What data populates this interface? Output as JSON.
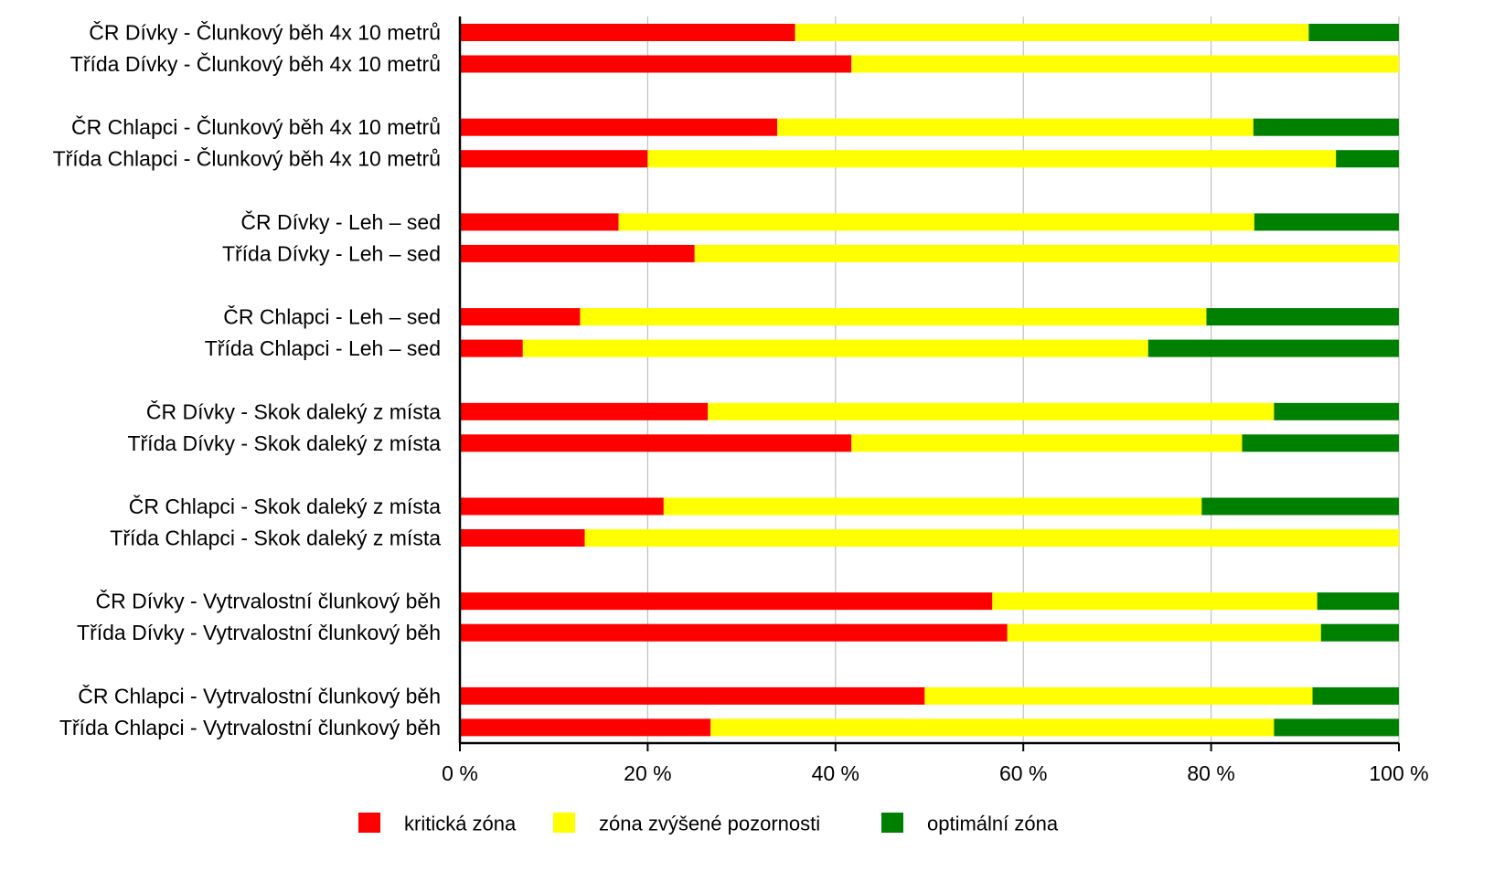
{
  "chart_data": {
    "type": "bar",
    "orientation": "horizontal",
    "stacked": "percent",
    "categories": [
      "ČR Dívky - Člunkový běh 4x 10 metrů",
      "Třída Dívky - Člunkový běh 4x 10 metrů",
      "ČR Chlapci - Člunkový běh 4x 10 metrů",
      "Třída Chlapci - Člunkový běh 4x 10 metrů",
      "ČR Dívky - Leh – sed",
      "Třída Dívky - Leh – sed",
      "ČR Chlapci - Leh – sed",
      "Třída Chlapci - Leh – sed",
      "ČR Dívky - Skok daleký z místa",
      "Třída Dívky - Skok daleký z místa",
      "ČR Chlapci - Skok daleký z místa",
      "Třída Chlapci - Skok daleký z místa",
      "ČR Dívky - Vytrvalostní člunkový běh",
      "Třída Dívky - Vytrvalostní člunkový běh",
      "ČR Chlapci - Vytrvalostní člunkový běh",
      "Třída Chlapci - Vytrvalostní člunkový běh"
    ],
    "series": [
      {
        "name": "kritická zóna",
        "color": "#ff0000",
        "values": [
          35.7,
          41.7,
          33.8,
          20.0,
          16.9,
          25.0,
          12.8,
          6.7,
          26.4,
          41.7,
          21.7,
          13.3,
          56.7,
          58.3,
          49.5,
          26.7
        ]
      },
      {
        "name": "zóna zvýšené pozornosti",
        "color": "#ffff00",
        "values": [
          54.7,
          58.3,
          50.7,
          73.3,
          67.7,
          75.0,
          66.7,
          66.6,
          60.3,
          41.6,
          57.3,
          86.7,
          34.6,
          33.4,
          41.3,
          60.0
        ]
      },
      {
        "name": "optimální zóna",
        "color": "#008000",
        "values": [
          9.6,
          0.0,
          15.5,
          6.7,
          15.4,
          0.0,
          20.5,
          26.7,
          13.3,
          16.7,
          21.0,
          0.0,
          8.7,
          8.3,
          9.2,
          13.3
        ]
      }
    ],
    "xlim": [
      0,
      100
    ],
    "xticks": [
      0,
      20,
      40,
      60,
      80,
      100
    ],
    "xtick_labels": [
      "0 %",
      "20 %",
      "40 %",
      "60 %",
      "80 %",
      "100 %"
    ],
    "grid": "vertical",
    "legend": {
      "position": "bottom",
      "items": [
        {
          "label": "kritická zóna",
          "color": "#ff0000"
        },
        {
          "label": "zóna zvýšené pozornosti",
          "color": "#ffff00"
        },
        {
          "label": "optimální zóna",
          "color": "#008000"
        }
      ]
    }
  }
}
